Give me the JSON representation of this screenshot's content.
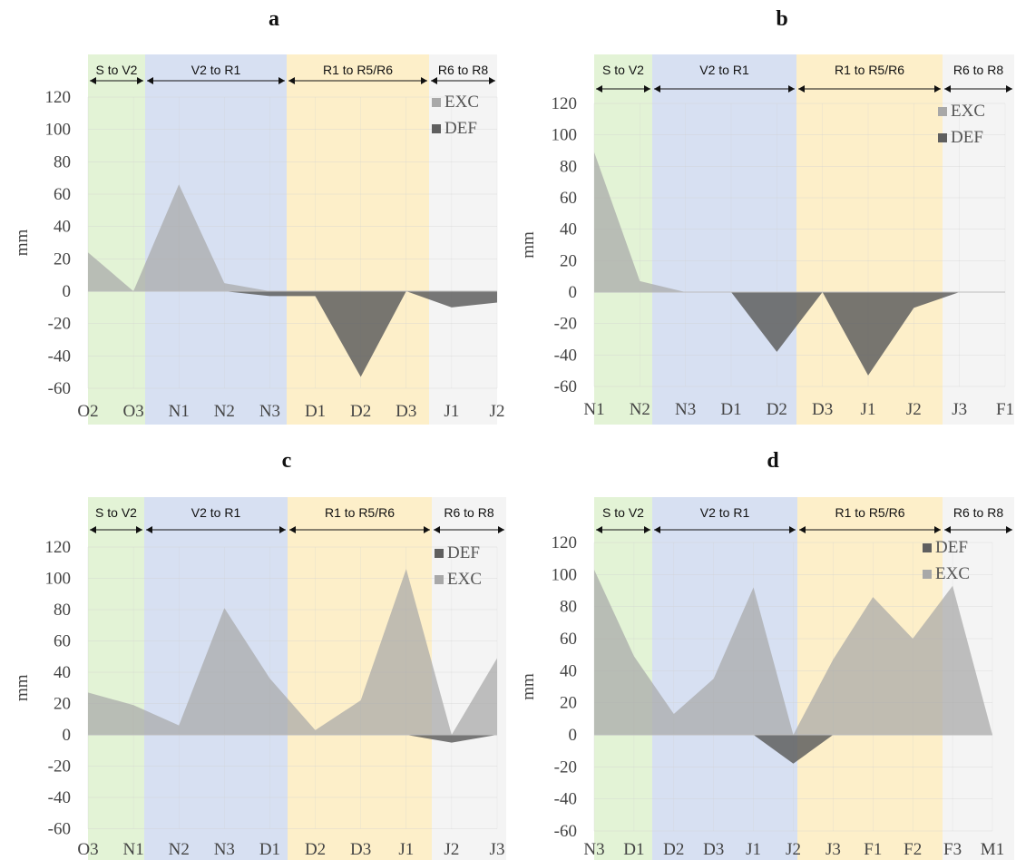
{
  "figure": {
    "stage_labels": [
      "S to V2",
      "V2 to R1",
      "R1 to R5/R6",
      "R6 to R8"
    ],
    "band_colors": [
      "#e3f3d6",
      "#d7e0f2",
      "#fdefc9",
      "#f4f4f4"
    ],
    "series_colors": {
      "EXC": "#a8a8a8",
      "DEF": "#5f5f5f"
    }
  },
  "chart_data": [
    {
      "panel": "a",
      "type": "area",
      "ylabel": "mm",
      "ylim": [
        -60,
        120
      ],
      "yticks": [
        -60,
        -40,
        -20,
        0,
        20,
        40,
        60,
        80,
        100,
        120
      ],
      "categories": [
        "O2",
        "O3",
        "N1",
        "N2",
        "N3",
        "D1",
        "D2",
        "D3",
        "J1",
        "J2"
      ],
      "legend_order": [
        "EXC",
        "DEF"
      ],
      "series": [
        {
          "name": "EXC",
          "values": [
            24,
            0,
            66,
            5,
            0,
            0,
            0,
            0,
            0,
            0
          ]
        },
        {
          "name": "DEF",
          "values": [
            0,
            0,
            0,
            0,
            -3,
            -3,
            -53,
            0,
            -10,
            -7
          ]
        }
      ]
    },
    {
      "panel": "b",
      "type": "area",
      "ylabel": "mm",
      "ylim": [
        -60,
        120
      ],
      "yticks": [
        -60,
        -40,
        -20,
        0,
        20,
        40,
        60,
        80,
        100,
        120
      ],
      "categories": [
        "N1",
        "N2",
        "N3",
        "D1",
        "D2",
        "D3",
        "J1",
        "J2",
        "J3",
        "F1"
      ],
      "legend_order": [
        "EXC",
        "DEF"
      ],
      "series": [
        {
          "name": "EXC",
          "values": [
            89,
            7,
            0,
            0,
            0,
            0,
            0,
            0,
            0,
            0
          ]
        },
        {
          "name": "DEF",
          "values": [
            0,
            0,
            0,
            0,
            -38,
            0,
            -53,
            -10,
            0,
            0
          ]
        }
      ]
    },
    {
      "panel": "c",
      "type": "area",
      "ylabel": "mm",
      "ylim": [
        -60,
        120
      ],
      "yticks": [
        -60,
        -40,
        -20,
        0,
        20,
        40,
        60,
        80,
        100,
        120
      ],
      "categories": [
        "O3",
        "N1",
        "N2",
        "N3",
        "D1",
        "D2",
        "D3",
        "J1",
        "J2",
        "J3"
      ],
      "legend_order": [
        "DEF",
        "EXC"
      ],
      "series": [
        {
          "name": "DEF",
          "values": [
            0,
            0,
            0,
            0,
            0,
            0,
            0,
            0,
            -5,
            0
          ]
        },
        {
          "name": "EXC",
          "values": [
            27,
            19,
            6,
            81,
            36,
            3,
            22,
            106,
            0,
            49
          ]
        }
      ]
    },
    {
      "panel": "d",
      "type": "area",
      "ylabel": "mm",
      "ylim": [
        -60,
        120
      ],
      "yticks": [
        -60,
        -40,
        -20,
        0,
        20,
        40,
        60,
        80,
        100,
        120
      ],
      "categories": [
        "N3",
        "D1",
        "D2",
        "D3",
        "J1",
        "J2",
        "J3",
        "F1",
        "F2",
        "F3",
        "M1"
      ],
      "legend_order": [
        "DEF",
        "EXC"
      ],
      "series": [
        {
          "name": "DEF",
          "values": [
            0,
            0,
            0,
            0,
            0,
            -18,
            0,
            0,
            0,
            0,
            0
          ]
        },
        {
          "name": "EXC",
          "values": [
            103,
            49,
            13,
            35,
            92,
            0,
            47,
            86,
            60,
            93,
            0
          ]
        }
      ]
    }
  ]
}
